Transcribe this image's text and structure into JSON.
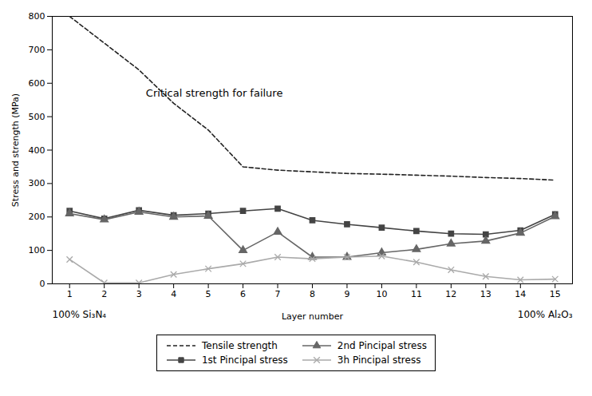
{
  "chart_data": {
    "type": "line",
    "ylabel": "Stress and strength (MPa)",
    "xlabel": "Layer number",
    "xlabel_left": "100% Si₃N₄",
    "xlabel_right": "100% Al₂O₃",
    "annotations": [
      {
        "text": "Critical strength for failure",
        "x": 3.2,
        "y": 570
      }
    ],
    "x": [
      1,
      2,
      3,
      4,
      5,
      6,
      7,
      8,
      9,
      10,
      11,
      12,
      13,
      14,
      15
    ],
    "series": [
      {
        "name": "Tensile strength",
        "color": "#222222",
        "line_style": "dashed",
        "values": [
          800,
          720,
          640,
          540,
          460,
          350,
          340,
          335,
          330,
          328,
          325,
          322,
          318,
          315,
          310
        ]
      },
      {
        "name": "1st Pincipal stress",
        "color": "#444444",
        "line_style": "solid",
        "marker": "square",
        "values": [
          218,
          195,
          220,
          205,
          210,
          218,
          225,
          190,
          178,
          168,
          158,
          150,
          148,
          160,
          208
        ]
      },
      {
        "name": "2nd Pincipal stress",
        "color": "#666666",
        "line_style": "solid",
        "marker": "triangle",
        "values": [
          210,
          192,
          215,
          200,
          203,
          100,
          155,
          80,
          80,
          93,
          103,
          120,
          128,
          152,
          202
        ]
      },
      {
        "name": "3h Pincipal stress",
        "color": "#aaaaaa",
        "line_style": "solid",
        "marker": "times",
        "values": [
          73,
          3,
          3,
          28,
          45,
          60,
          80,
          75,
          80,
          83,
          65,
          42,
          22,
          12,
          14
        ]
      }
    ],
    "xlim": [
      0.5,
      15.5
    ],
    "xticks": [
      1,
      2,
      3,
      4,
      5,
      6,
      7,
      8,
      9,
      10,
      11,
      12,
      13,
      14,
      15
    ],
    "ylim": [
      0,
      800
    ],
    "yticks": [
      0,
      100,
      200,
      300,
      400,
      500,
      600,
      700,
      800
    ],
    "grid": false,
    "legend": "bottom"
  }
}
